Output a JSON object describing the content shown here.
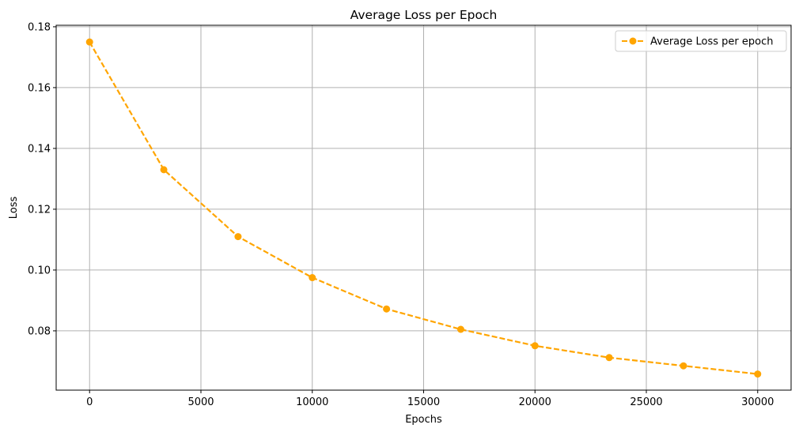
{
  "chart_data": {
    "type": "line",
    "title": "Average Loss per Epoch",
    "xlabel": "Epochs",
    "ylabel": "Loss",
    "xlim": [
      -1500,
      31500
    ],
    "ylim": [
      0.0605,
      0.1805
    ],
    "xticks": [
      0,
      5000,
      10000,
      15000,
      20000,
      25000,
      30000
    ],
    "yticks": [
      0.08,
      0.1,
      0.12,
      0.14,
      0.16,
      0.18
    ],
    "ytick_labels": [
      "0.08",
      "0.10",
      "0.12",
      "0.14",
      "0.16",
      "0.18"
    ],
    "grid": true,
    "legend_position": "top-right",
    "series": [
      {
        "name": "Average Loss per epoch",
        "color": "#ffa500",
        "line_style": "dashed",
        "marker": "circle",
        "x": [
          0,
          3333,
          6667,
          10000,
          13333,
          16667,
          20000,
          23333,
          26667,
          30000
        ],
        "y": [
          0.175,
          0.133,
          0.111,
          0.0975,
          0.0872,
          0.0805,
          0.0751,
          0.0712,
          0.0685,
          0.0658
        ]
      }
    ]
  }
}
